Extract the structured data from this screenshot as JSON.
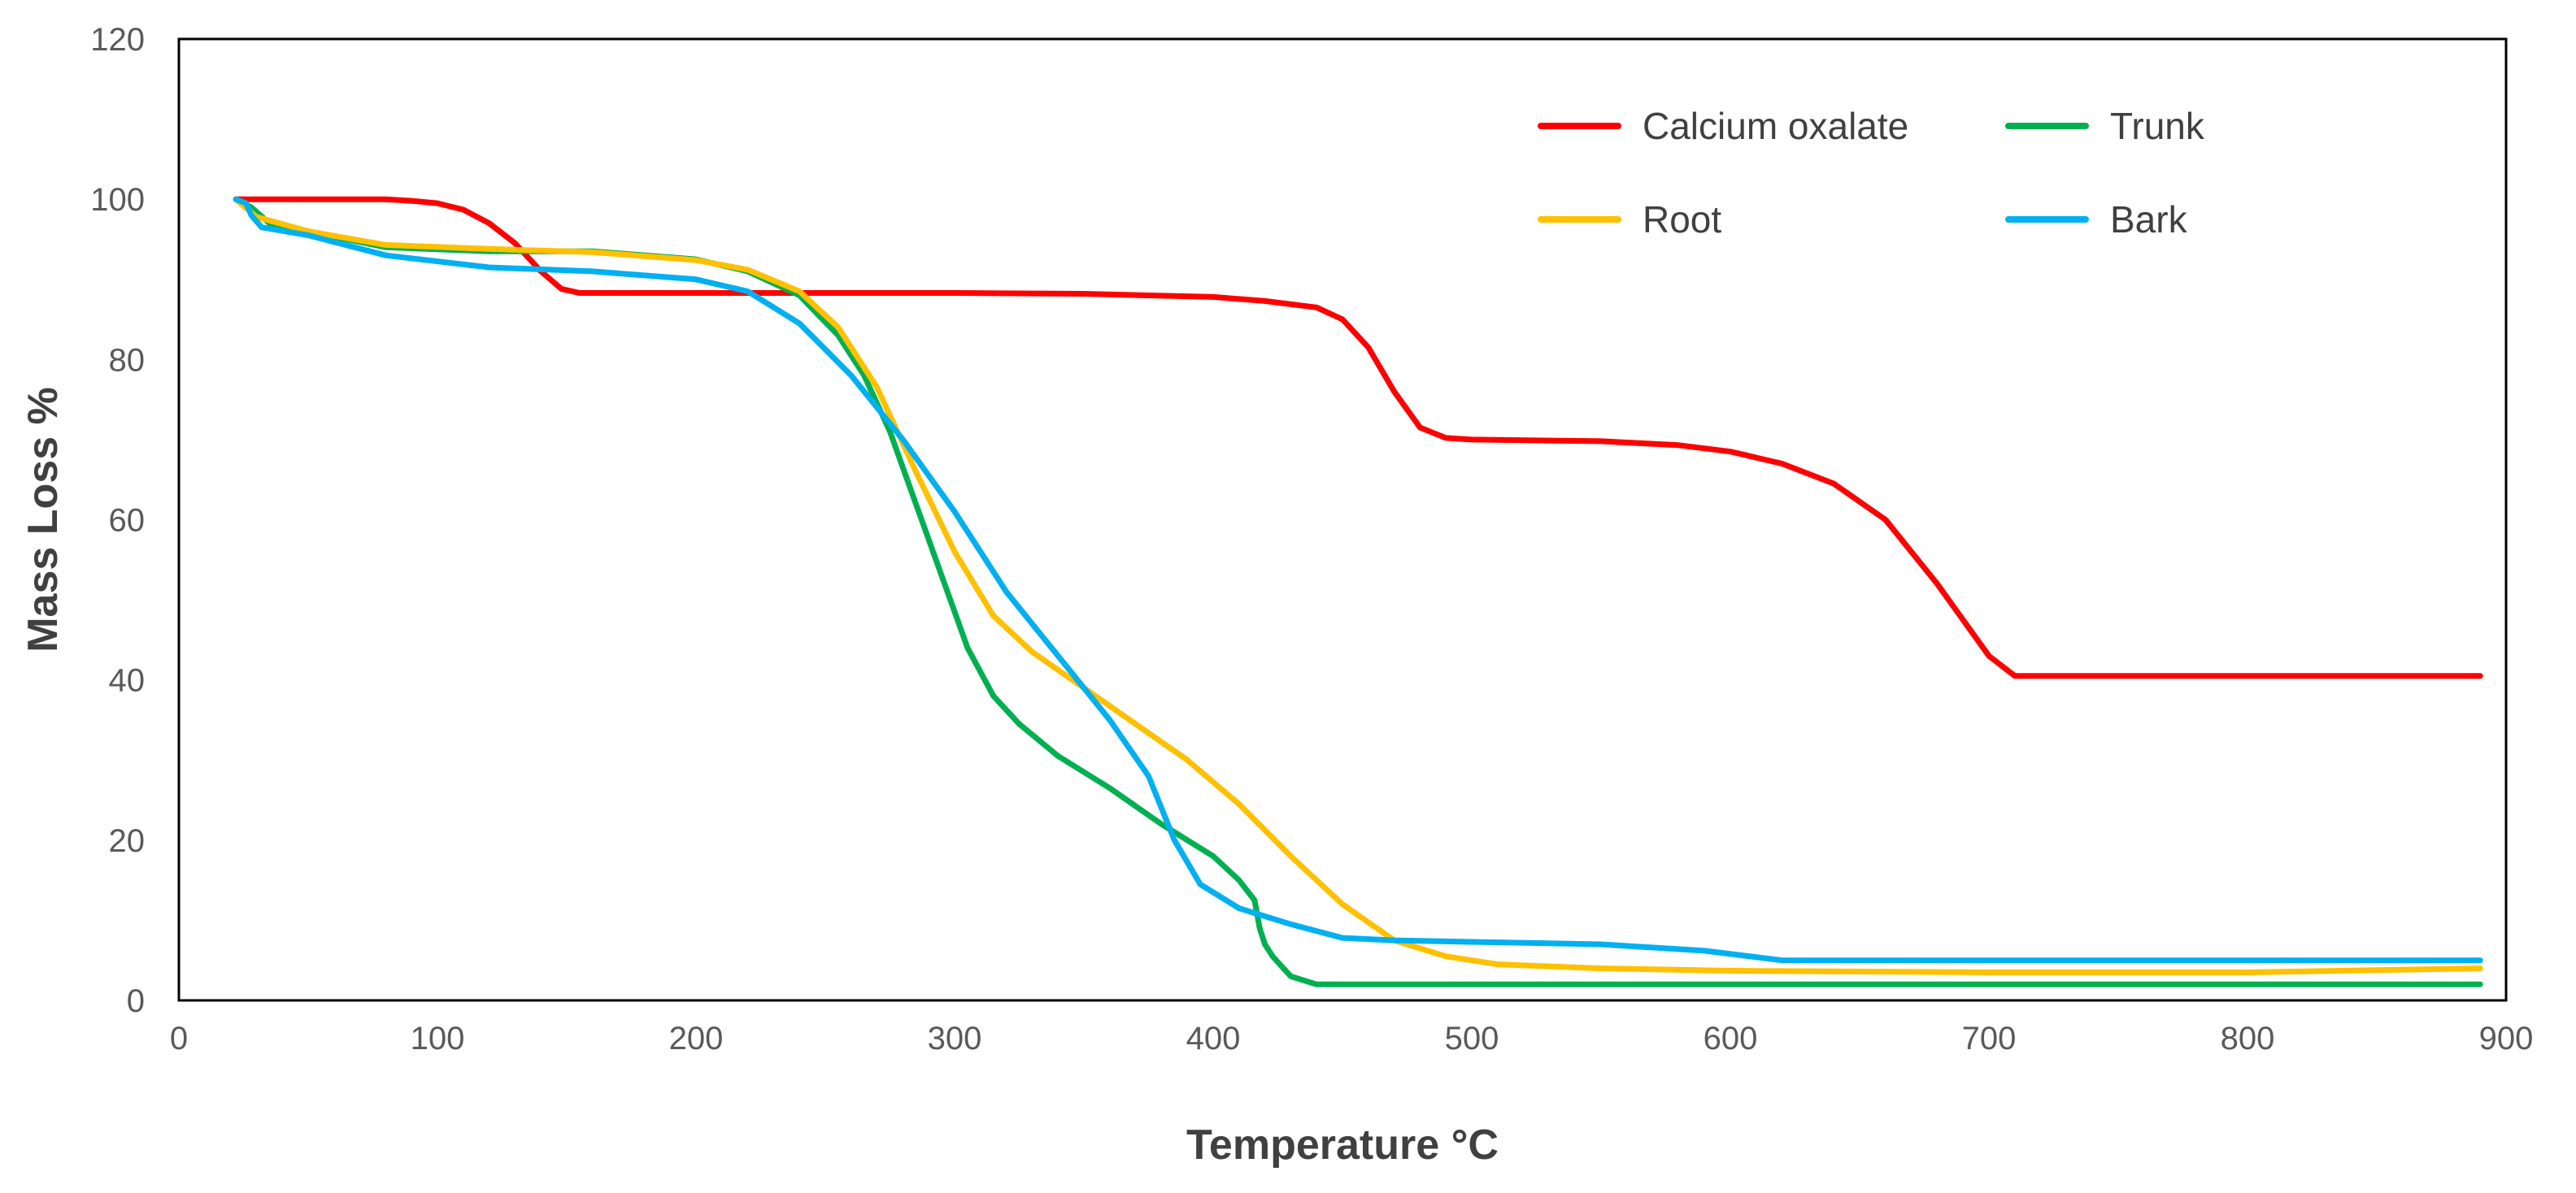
{
  "chart_data": {
    "type": "line",
    "title": "",
    "xlabel": "Temperature °C",
    "ylabel": "Mass Loss %",
    "xlim": [
      0,
      900
    ],
    "ylim": [
      0,
      120
    ],
    "xticks": [
      0,
      100,
      200,
      300,
      400,
      500,
      600,
      700,
      800,
      900
    ],
    "yticks": [
      0,
      20,
      40,
      60,
      80,
      100,
      120
    ],
    "grid": false,
    "legend_position": "top-right",
    "series": [
      {
        "name": "Calcium oxalate",
        "color": "#ff0000",
        "x": [
          22,
          40,
          60,
          80,
          90,
          100,
          110,
          120,
          130,
          140,
          148,
          155,
          160,
          200,
          250,
          300,
          350,
          400,
          420,
          440,
          450,
          460,
          470,
          480,
          490,
          500,
          550,
          580,
          600,
          620,
          640,
          660,
          680,
          700,
          710,
          800,
          890
        ],
        "y": [
          100,
          100,
          100,
          100,
          99.8,
          99.5,
          98.7,
          97.0,
          94.5,
          91.0,
          88.8,
          88.3,
          88.3,
          88.3,
          88.3,
          88.3,
          88.2,
          87.8,
          87.3,
          86.5,
          85.0,
          81.5,
          76.0,
          71.5,
          70.2,
          70.0,
          69.8,
          69.3,
          68.5,
          67.0,
          64.5,
          60.0,
          52.0,
          43.0,
          40.5,
          40.5,
          40.5
        ]
      },
      {
        "name": "Trunk",
        "color": "#00b050",
        "x": [
          22,
          28,
          35,
          50,
          80,
          120,
          160,
          200,
          220,
          240,
          255,
          265,
          275,
          285,
          295,
          305,
          315,
          325,
          340,
          360,
          380,
          400,
          410,
          416,
          418,
          420,
          423,
          430,
          440,
          500,
          600,
          700,
          800,
          890
        ],
        "y": [
          100,
          99,
          97,
          96,
          94,
          93.5,
          93.5,
          92.5,
          91.0,
          88.0,
          83.0,
          78.0,
          71.0,
          62.0,
          53.0,
          44.0,
          38.0,
          34.5,
          30.5,
          26.5,
          22.0,
          18.0,
          15.0,
          12.5,
          9.0,
          7.0,
          5.5,
          3.0,
          2.0,
          2.0,
          2.0,
          2.0,
          2.0,
          2.0
        ]
      },
      {
        "name": "Root",
        "color": "#ffc000",
        "x": [
          22,
          30,
          50,
          80,
          120,
          160,
          200,
          220,
          240,
          255,
          270,
          285,
          300,
          315,
          330,
          350,
          370,
          390,
          410,
          430,
          450,
          470,
          490,
          510,
          550,
          600,
          700,
          800,
          890
        ],
        "y": [
          100,
          97.8,
          96.0,
          94.3,
          93.8,
          93.4,
          92.4,
          91.2,
          88.5,
          84.0,
          76.5,
          66.0,
          56.0,
          48.0,
          43.5,
          39.0,
          34.5,
          30.0,
          24.5,
          18.0,
          12.0,
          7.5,
          5.5,
          4.5,
          4.0,
          3.7,
          3.5,
          3.5,
          4.0
        ]
      },
      {
        "name": "Bark",
        "color": "#00b0f0",
        "x": [
          22,
          26,
          28,
          32,
          50,
          80,
          120,
          160,
          200,
          220,
          240,
          260,
          280,
          300,
          320,
          340,
          360,
          375,
          385,
          395,
          410,
          430,
          450,
          470,
          500,
          550,
          590,
          620,
          650,
          700,
          800,
          890
        ],
        "y": [
          100,
          99.5,
          98.0,
          96.5,
          95.5,
          93.0,
          91.5,
          91.0,
          90.0,
          88.5,
          84.5,
          78.0,
          70.0,
          61.0,
          51.0,
          43.0,
          35.0,
          28.0,
          20.0,
          14.5,
          11.5,
          9.5,
          7.8,
          7.5,
          7.3,
          7.0,
          6.2,
          5.0,
          5.0,
          5.0,
          5.0,
          5.0
        ]
      }
    ]
  }
}
